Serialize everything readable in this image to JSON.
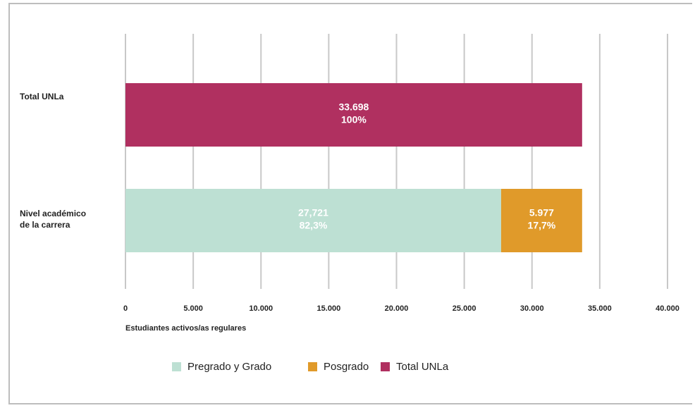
{
  "chart_data": {
    "type": "stacked-bar-horizontal",
    "categories": [
      "Total UNLa",
      "Nivel académico de la carrera"
    ],
    "series": [
      {
        "name": "Pregrado y Grado",
        "color": "#bde0d3",
        "values": [
          null,
          27721
        ],
        "value_labels": [
          null,
          "27,721"
        ],
        "percents": [
          null,
          82.3
        ],
        "percent_labels": [
          null,
          "82,3%"
        ]
      },
      {
        "name": "Posgrado",
        "color": "#e09a2a",
        "values": [
          null,
          5977
        ],
        "value_labels": [
          null,
          "5.977"
        ],
        "percents": [
          null,
          17.7
        ],
        "percent_labels": [
          null,
          "17,7%"
        ]
      },
      {
        "name": "Total UNLa",
        "color": "#b03060",
        "values": [
          33698,
          null
        ],
        "value_labels": [
          "33.698",
          null
        ],
        "percents": [
          100,
          null
        ],
        "percent_labels": [
          "100%",
          null
        ]
      }
    ],
    "xlabel": "Estudiantes activos/as regulares",
    "xlim": [
      0,
      40000
    ],
    "xticks": [
      0,
      {
        "value": 5000,
        "label": "5.000"
      },
      {
        "value": 10000,
        "label": "10.000"
      },
      {
        "value": 15000,
        "label": "15.000"
      },
      {
        "value": 20000,
        "label": "20.000"
      },
      {
        "value": 25000,
        "label": "25.000"
      },
      {
        "value": 30000,
        "label": "30.000"
      },
      {
        "value": 35000,
        "label": "35.000"
      },
      {
        "value": 40000,
        "label": "40.000"
      }
    ],
    "grid": true,
    "legend": "bottom"
  }
}
